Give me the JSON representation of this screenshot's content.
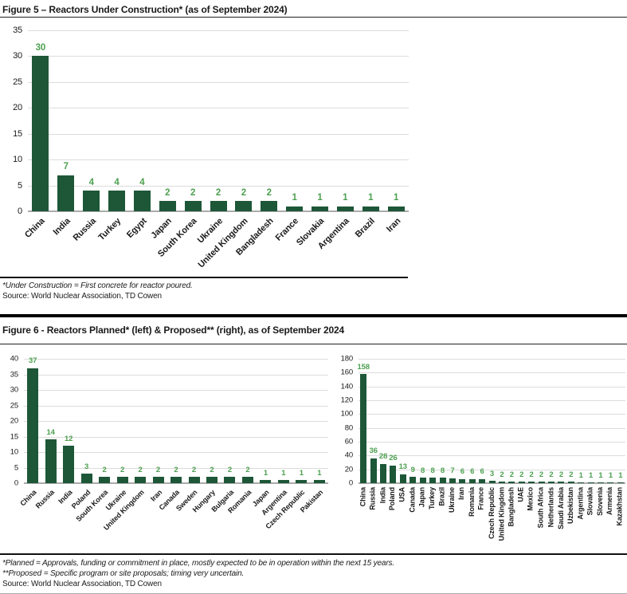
{
  "figure5": {
    "title": "Figure 5 – Reactors Under Construction* (as of September 2024)",
    "footnote": "*Under Construction = First concrete for reactor poured.",
    "source": "Source: World Nuclear Association, TD Cowen"
  },
  "figure6": {
    "title": "Figure 6 - Reactors Planned* (left) & Proposed** (right), as of September 2024",
    "footnote1": "*Planned = Approvals, funding or commitment in place, mostly expected to be in operation within the next 15 years.",
    "footnote2": "**Proposed = Specific program or site proposals; timing very uncertain.",
    "source": "Source: World Nuclear Association, TD Cowen"
  },
  "colors": {
    "bar_green": "#1D5738",
    "value_label_green": "#4DA050",
    "gridline_gray": "#DCDCDC",
    "axis_gray": "#ABABAB",
    "divider_black": "#000000",
    "bottom_rule_gray": "#A8A8A8"
  },
  "chart_data": [
    {
      "type": "bar",
      "title": "Reactors Under Construction (as of September 2024)",
      "categories": [
        "China",
        "India",
        "Russia",
        "Turkey",
        "Egypt",
        "Japan",
        "South Korea",
        "Ukraine",
        "United Kingdom",
        "Bangladesh",
        "France",
        "Slovakia",
        "Argentina",
        "Brazil",
        "Iran"
      ],
      "values": [
        30,
        7,
        4,
        4,
        4,
        2,
        2,
        2,
        2,
        2,
        1,
        1,
        1,
        1,
        1
      ],
      "xlabel": "",
      "ylabel": "",
      "ylim": [
        0,
        35
      ],
      "ytick_step": 5,
      "grid": true,
      "legend": false,
      "data_labels": true,
      "bar_color": "#1D5738",
      "label_color": "#4DA050"
    },
    {
      "type": "bar",
      "title": "Reactors Planned (left), as of September 2024",
      "categories": [
        "China",
        "Russia",
        "India",
        "Poland",
        "South Korea",
        "Ukraine",
        "United Kingdom",
        "Iran",
        "Canada",
        "Sweden",
        "Hungary",
        "Bulgaria",
        "Romania",
        "Japan",
        "Argentina",
        "Czech Republic",
        "Pakistan"
      ],
      "values": [
        37,
        14,
        12,
        3,
        2,
        2,
        2,
        2,
        2,
        2,
        2,
        2,
        2,
        1,
        1,
        1,
        1
      ],
      "xlabel": "",
      "ylabel": "",
      "ylim": [
        0,
        40
      ],
      "ytick_step": 5,
      "grid": true,
      "legend": false,
      "data_labels": true,
      "bar_color": "#1D5738",
      "label_color": "#4DA050"
    },
    {
      "type": "bar",
      "title": "Reactors Proposed (right), as of September 2024",
      "categories": [
        "China",
        "Russia",
        "India",
        "Poland",
        "USA",
        "Canada",
        "Japan",
        "Turkey",
        "Brazil",
        "Ukraine",
        "Iran",
        "Romania",
        "France",
        "Czech Republic",
        "United Kingdom",
        "Bangladesh",
        "UAE",
        "Mexico",
        "South Africa",
        "Netherlands",
        "Saudi Arabia",
        "Uzbekistan",
        "Argentina",
        "Slovakia",
        "Slovenia",
        "Armenia",
        "Kazakhstan"
      ],
      "values": [
        158,
        36,
        28,
        26,
        13,
        9,
        8,
        8,
        8,
        7,
        6,
        6,
        6,
        3,
        2,
        2,
        2,
        2,
        2,
        2,
        2,
        2,
        1,
        1,
        1,
        1,
        1
      ],
      "xlabel": "",
      "ylabel": "",
      "ylim": [
        0,
        180
      ],
      "ytick_step": 20,
      "grid": true,
      "legend": false,
      "data_labels": true,
      "bar_color": "#1D5738",
      "label_color": "#4DA050"
    }
  ]
}
